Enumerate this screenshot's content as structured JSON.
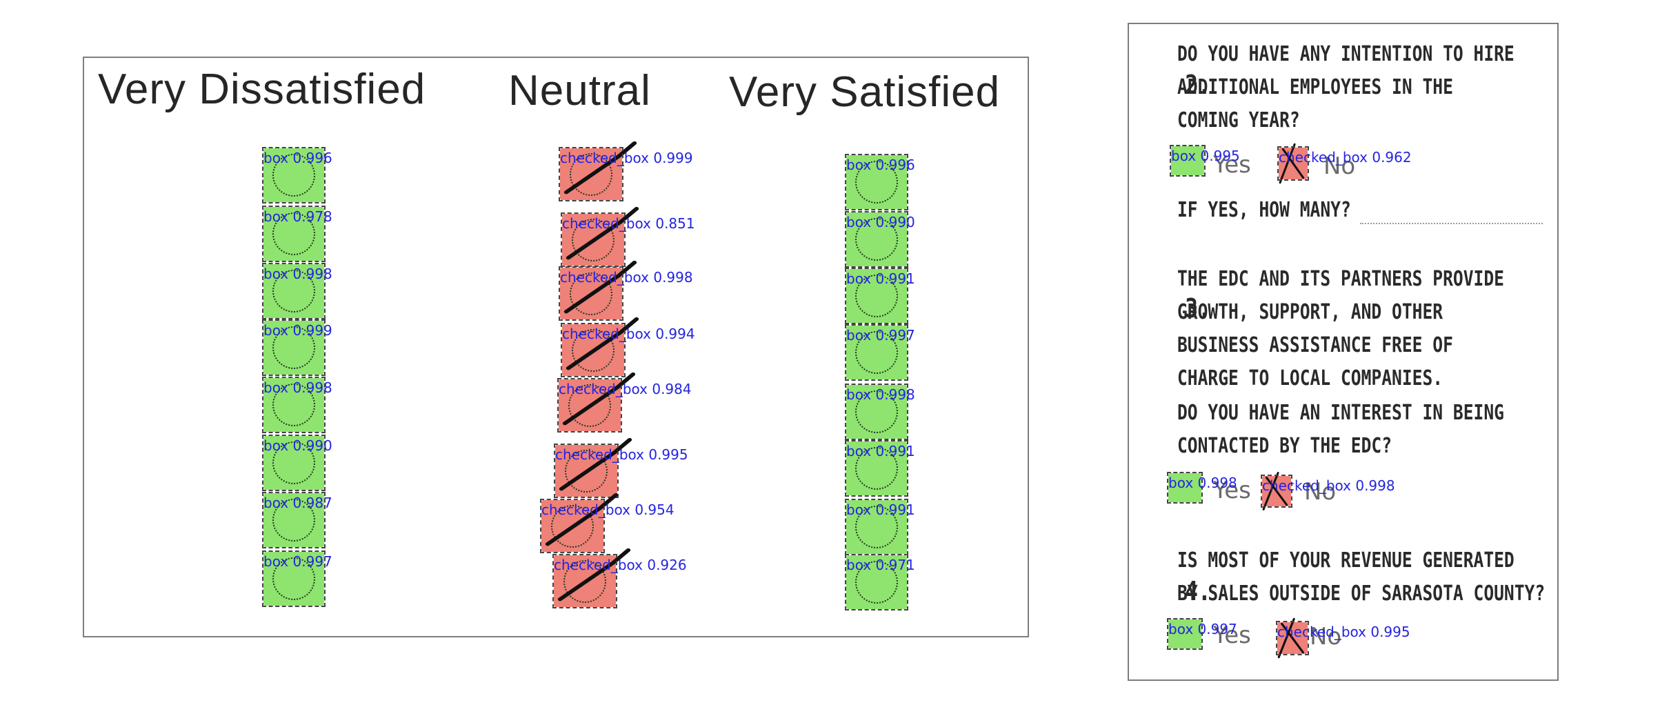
{
  "survey_panel": {
    "headers": [
      "Very Dissatisfied",
      "Neutral",
      "Very Satisfied"
    ],
    "columns": [
      {
        "name": "very-dissatisfied",
        "detections": [
          {
            "class": "box",
            "label": "box 0.996"
          },
          {
            "class": "box",
            "label": "box 0.978"
          },
          {
            "class": "box",
            "label": "box 0.998"
          },
          {
            "class": "box",
            "label": "box 0.999"
          },
          {
            "class": "box",
            "label": "box 0.998"
          },
          {
            "class": "box",
            "label": "box 0.990"
          },
          {
            "class": "box",
            "label": "box 0.987"
          },
          {
            "class": "box",
            "label": "box 0.997"
          }
        ]
      },
      {
        "name": "neutral",
        "detections": [
          {
            "class": "checked",
            "label": "checked_box 0.999"
          },
          {
            "class": "checked",
            "label": "checked_box 0.851"
          },
          {
            "class": "checked",
            "label": "checked_box 0.998"
          },
          {
            "class": "checked",
            "label": "checked_box 0.994"
          },
          {
            "class": "checked",
            "label": "checked_box 0.984"
          },
          {
            "class": "checked",
            "label": "checked_box 0.995"
          },
          {
            "class": "checked",
            "label": "checked_box 0.954"
          },
          {
            "class": "checked",
            "label": "checked_box 0.926"
          }
        ]
      },
      {
        "name": "very-satisfied",
        "detections": [
          {
            "class": "box",
            "label": "box 0.996"
          },
          {
            "class": "box",
            "label": "box 0.990"
          },
          {
            "class": "box",
            "label": "box 0.991"
          },
          {
            "class": "box",
            "label": "box 0.997"
          },
          {
            "class": "box",
            "label": "box 0.998"
          },
          {
            "class": "box",
            "label": "box 0.991"
          },
          {
            "class": "box",
            "label": "box 0.991"
          },
          {
            "class": "box",
            "label": "box 0.971"
          }
        ]
      }
    ]
  },
  "form_panel": {
    "questions": [
      {
        "number": "2.",
        "lines": [
          "DO YOU HAVE ANY INTENTION TO HIRE",
          "ADDITIONAL EMPLOYEES IN THE",
          "COMING YEAR?"
        ],
        "yes_label": "Yes",
        "no_label": "No",
        "yes_detection": "box 0.995",
        "no_detection": "checked_box 0.962",
        "followup": "IF YES, HOW MANY?"
      },
      {
        "number": "3.",
        "lines": [
          "THE EDC AND ITS PARTNERS PROVIDE",
          "GROWTH, SUPPORT, AND OTHER",
          "BUSINESS ASSISTANCE FREE OF",
          "CHARGE TO LOCAL COMPANIES.",
          "DO YOU HAVE AN INTEREST IN BEING",
          "CONTACTED BY THE EDC?"
        ],
        "yes_label": "Yes",
        "no_label": "No",
        "yes_detection": "box 0.998",
        "no_detection": "checked_box 0.998"
      },
      {
        "number": "4.",
        "lines": [
          "IS MOST OF YOUR REVENUE GENERATED",
          "BY SALES OUTSIDE OF SARASOTA COUNTY?"
        ],
        "yes_label": "Yes",
        "no_label": "No",
        "yes_detection": "box 0.997",
        "no_detection": "checked_box 0.995"
      }
    ]
  },
  "colors": {
    "box_fill": "#8fe36f",
    "checked_fill": "#ee8178",
    "label_text": "#2424e0"
  }
}
